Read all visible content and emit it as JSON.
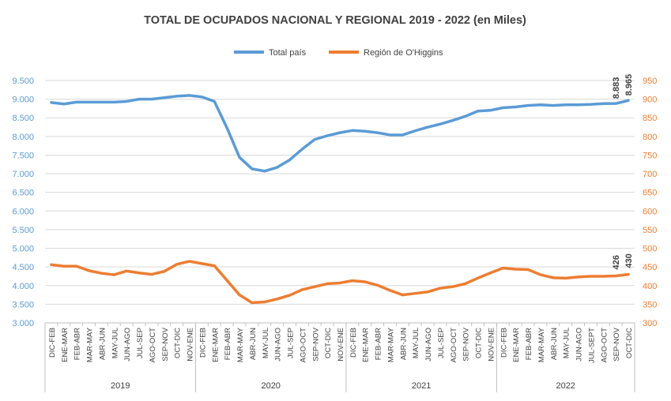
{
  "chart_data": {
    "type": "line",
    "title": "TOTAL DE OCUPADOS NACIONAL Y REGIONAL 2019 - 2022 (en Miles)",
    "colors": {
      "total": "#5b9bd5",
      "region": "#ed7d31",
      "axis_left": "#5b9bd5",
      "axis_right": "#ed7d31",
      "grid": "#d9d9d9",
      "text": "#404040"
    },
    "x": [
      "DIC-FEB",
      "ENE-MAR",
      "FEB-ABR",
      "MAR-MAY",
      "ABR-JUN",
      "MAY-JUL",
      "JUN-AGO",
      "JUL-SEP",
      "AGO-OCT",
      "SEP-NOV",
      "OCT-DIC",
      "NOV-ENE",
      "DIC-FEB",
      "ENE-MAR",
      "FEB-ABR",
      "MAR-MAY",
      "ABR-JUN",
      "MAY-JUL",
      "JUN-AGO",
      "JUL-SEP",
      "AGO-OCT",
      "SEP-NOV",
      "OCT-DIC",
      "NOV-ENE",
      "DIC-FEB",
      "ENE-MAR",
      "FEB-ABR",
      "MAR-MAY",
      "ABR-JUN",
      "MAY-JUL",
      "JUN-AGO",
      "JUL-SEP",
      "AGO-OCT",
      "SEP-NOV",
      "OCT-DIC",
      "NOV-ENE",
      "DIC-FEB",
      "ENE-MAR",
      "FEB-ABR",
      "MAR-MAY",
      "ABR-JUN",
      "MAY-JUL",
      "JUN-AGO",
      "JUL-SEPT",
      "AGO-OCT",
      "SEP-NOV",
      "OCT-DIC"
    ],
    "years": [
      {
        "label": "2019",
        "count": 12
      },
      {
        "label": "2020",
        "count": 12
      },
      {
        "label": "2021",
        "count": 12
      },
      {
        "label": "2022",
        "count": 11
      }
    ],
    "series": [
      {
        "name": "Total país",
        "axis": "left",
        "values": [
          8910,
          8870,
          8920,
          8920,
          8920,
          8920,
          8940,
          9000,
          9000,
          9040,
          9080,
          9100,
          9060,
          8940,
          8230,
          7440,
          7130,
          7070,
          7170,
          7370,
          7660,
          7920,
          8020,
          8100,
          8160,
          8140,
          8100,
          8040,
          8040,
          8150,
          8250,
          8330,
          8430,
          8540,
          8680,
          8700,
          8770,
          8790,
          8830,
          8850,
          8830,
          8850,
          8850,
          8860,
          8880,
          8883,
          8965
        ]
      },
      {
        "name": "Región de O'Higgins",
        "axis": "right",
        "values": [
          456,
          452,
          452,
          440,
          433,
          429,
          439,
          434,
          430,
          438,
          457,
          465,
          459,
          453,
          414,
          375,
          354,
          356,
          364,
          374,
          389,
          397,
          405,
          407,
          413,
          410,
          401,
          387,
          375,
          379,
          383,
          393,
          397,
          405,
          420,
          434,
          447,
          444,
          443,
          429,
          421,
          420,
          423,
          425,
          425,
          426,
          430
        ]
      }
    ],
    "ylim_left": [
      3000,
      9500
    ],
    "ylim_right": [
      300,
      950
    ],
    "yticks_left": [
      "3.000",
      "3.500",
      "4.000",
      "4.500",
      "5.000",
      "5.500",
      "6.000",
      "6.500",
      "7.000",
      "7.500",
      "8.000",
      "8.500",
      "9.000",
      "9.500"
    ],
    "yticks_right": [
      "300",
      "350",
      "400",
      "450",
      "500",
      "550",
      "600",
      "650",
      "700",
      "750",
      "800",
      "850",
      "900",
      "950"
    ],
    "data_labels": [
      {
        "series": 0,
        "index": 45,
        "text": "8.883"
      },
      {
        "series": 0,
        "index": 46,
        "text": "8.965"
      },
      {
        "series": 1,
        "index": 45,
        "text": "426"
      },
      {
        "series": 1,
        "index": 46,
        "text": "430"
      }
    ],
    "legend_position": "top",
    "grid": true
  }
}
